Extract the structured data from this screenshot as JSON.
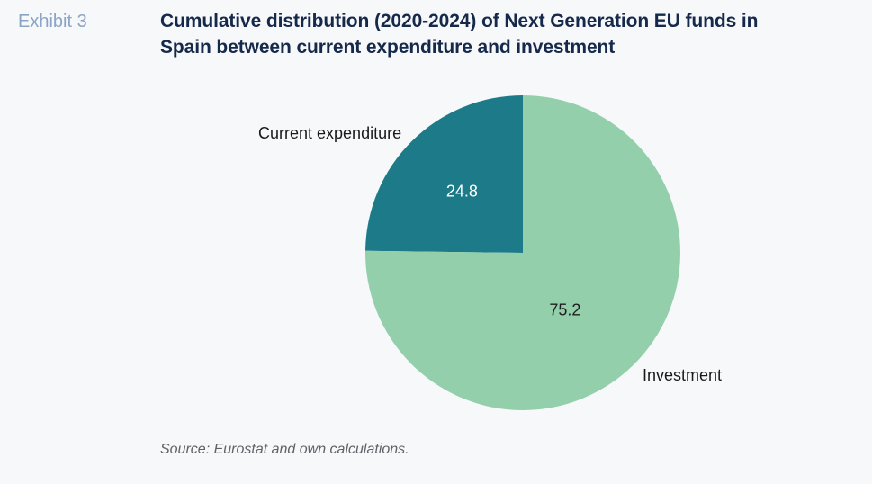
{
  "exhibit": {
    "label": "Exhibit 3"
  },
  "title": "Cumulative distribution (2020-2024) of Next Generation EU funds in Spain between current expenditure and investment",
  "source": "Source: Eurostat and own calculations.",
  "colors": {
    "background": "#f7f8fa",
    "title_text": "#15294b",
    "exhibit_label_text": "#8ba5c6",
    "category_label_text": "#1a1a1a",
    "source_text": "#5f6368",
    "current_expenditure_slice": "#1d7b89",
    "investment_slice": "#94cfac"
  },
  "chart_data": {
    "type": "pie",
    "title": "Cumulative distribution (2020-2024) of Next Generation EU funds in Spain between current expenditure and investment",
    "unit": "percent",
    "start": "top",
    "direction": "counterclockwise",
    "legend_position": "none",
    "labels_outside": true,
    "slices": [
      {
        "label": "Current expenditure",
        "value": 24.8,
        "value_label": "24.8",
        "color": "#1d7b89",
        "value_label_color": "#ffffff"
      },
      {
        "label": "Investment",
        "value": 75.2,
        "value_label": "75.2",
        "color": "#94cfac",
        "value_label_color": "#1f1f1f"
      }
    ]
  }
}
